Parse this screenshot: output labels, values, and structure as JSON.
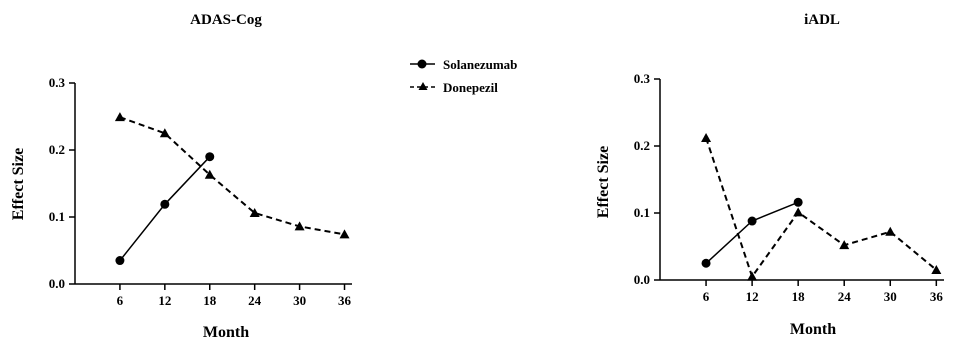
{
  "legend": {
    "entries": [
      {
        "label": "Solanezumab",
        "marker": "circle",
        "line": "solid"
      },
      {
        "label": "Donepezil",
        "marker": "triangle",
        "line": "dashed"
      }
    ]
  },
  "chart_data": [
    {
      "type": "line",
      "title": "ADAS-Cog",
      "xlabel": "Month",
      "ylabel": "Effect Size",
      "xticks": [
        6,
        12,
        18,
        24,
        30,
        36
      ],
      "yticks": [
        "0.0",
        "0.1",
        "0.2",
        "0.3"
      ],
      "xlim": [
        0,
        37
      ],
      "ylim": [
        0,
        0.3
      ],
      "series": [
        {
          "name": "Solanezumab",
          "marker": "circle",
          "line": "solid",
          "x": [
            6,
            12,
            18
          ],
          "y": [
            0.035,
            0.119,
            0.19
          ]
        },
        {
          "name": "Donepezil",
          "marker": "triangle",
          "line": "dashed",
          "x": [
            6,
            12,
            18,
            24,
            30,
            36
          ],
          "y": [
            0.249,
            0.225,
            0.163,
            0.106,
            0.086,
            0.074
          ]
        }
      ]
    },
    {
      "type": "line",
      "title": "iADL",
      "xlabel": "Month",
      "ylabel": "Effect Size",
      "xticks": [
        6,
        12,
        18,
        24,
        30,
        36
      ],
      "yticks": [
        "0.0",
        "0.1",
        "0.2",
        "0.3"
      ],
      "xlim": [
        0,
        37
      ],
      "ylim": [
        0,
        0.3
      ],
      "series": [
        {
          "name": "Solanezumab",
          "marker": "circle",
          "line": "solid",
          "x": [
            6,
            12,
            18
          ],
          "y": [
            0.025,
            0.088,
            0.116
          ]
        },
        {
          "name": "Donepezil",
          "marker": "triangle",
          "line": "dashed",
          "x": [
            6,
            12,
            18,
            24,
            30,
            36
          ],
          "y": [
            0.212,
            0.005,
            0.101,
            0.052,
            0.072,
            0.015
          ]
        }
      ]
    }
  ]
}
